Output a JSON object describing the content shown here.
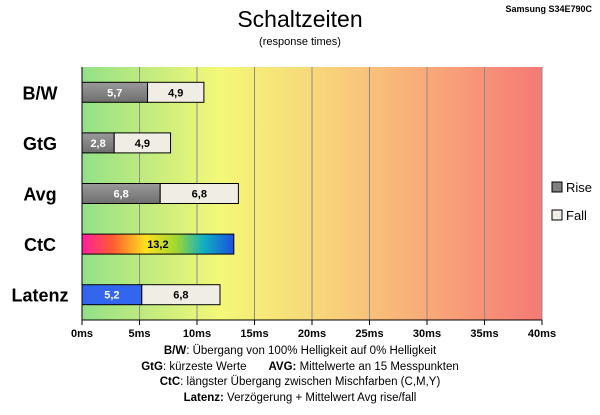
{
  "chart_data": {
    "type": "bar",
    "orientation": "horizontal",
    "stacked": true,
    "title": "Schaltzeiten",
    "subtitle": "(response times)",
    "model": "Samsung S34E790C",
    "xlim": [
      0,
      40
    ],
    "x_ticks": [
      "0ms",
      "5ms",
      "10ms",
      "15ms",
      "20ms",
      "25ms",
      "30ms",
      "35ms",
      "40ms"
    ],
    "grid": "vertical",
    "legend_position": "right",
    "legend": [
      {
        "name": "Rise",
        "color": "#808080"
      },
      {
        "name": "Fall",
        "color": "#f0ede4"
      }
    ],
    "categories": [
      "B/W",
      "GtG",
      "Avg",
      "CtC",
      "Latenz"
    ],
    "bars": [
      {
        "category": "B/W",
        "segments": [
          {
            "series": "Rise",
            "value": 5.7,
            "label": "5,7",
            "fill": "gray"
          },
          {
            "series": "Fall",
            "value": 4.9,
            "label": "4,9",
            "fill": "cream"
          }
        ]
      },
      {
        "category": "GtG",
        "segments": [
          {
            "series": "Rise",
            "value": 2.8,
            "label": "2,8",
            "fill": "gray"
          },
          {
            "series": "Fall",
            "value": 4.9,
            "label": "4,9",
            "fill": "cream"
          }
        ]
      },
      {
        "category": "Avg",
        "segments": [
          {
            "series": "Rise",
            "value": 6.8,
            "label": "6,8",
            "fill": "gray"
          },
          {
            "series": "Fall",
            "value": 6.8,
            "label": "6,8",
            "fill": "cream"
          }
        ]
      },
      {
        "category": "CtC",
        "segments": [
          {
            "series": "",
            "value": 13.2,
            "label": "13,2",
            "fill": "rainbow"
          }
        ]
      },
      {
        "category": "Latenz",
        "segments": [
          {
            "series": "",
            "value": 5.2,
            "label": "5,2",
            "fill": "blue"
          },
          {
            "series": "",
            "value": 6.8,
            "label": "6,8",
            "fill": "cream"
          }
        ]
      }
    ]
  },
  "notes": {
    "line1": {
      "key": "B/W",
      "text": ":  Übergang von 100% Helligkeit auf 0% Helligkeit"
    },
    "line2a": {
      "key": "GtG",
      "text": ": kürzeste  Werte"
    },
    "line2b": {
      "key": "AVG:",
      "text": " Mittelwerte  an 15 Messpunkten"
    },
    "line3": {
      "key": "CtC",
      "text": ": längster Übergang  zwischen Mischfarben (C,M,Y)"
    },
    "line4": {
      "key": "Latenz:",
      "text": " Verzögerung  + Mittelwert Avg rise/fall"
    }
  },
  "colors": {
    "rise": "#808080",
    "fall": "#f0ede4",
    "latency": "#3366ee",
    "grid": "#8c8c8c"
  }
}
